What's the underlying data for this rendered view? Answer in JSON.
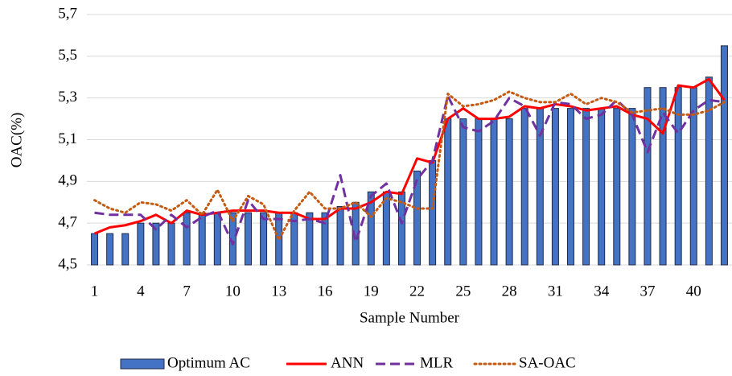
{
  "chart_data": {
    "type": "bar-line",
    "y_label": "OAC(%)",
    "x_label": "Sample Number",
    "categories": [
      "1",
      null,
      null,
      "4",
      null,
      null,
      "7",
      null,
      null,
      "10",
      null,
      null,
      "13",
      null,
      null,
      "16",
      null,
      null,
      "19",
      null,
      null,
      "22",
      null,
      null,
      "25",
      null,
      null,
      "28",
      null,
      null,
      "31",
      null,
      null,
      "34",
      null,
      null,
      "37",
      null,
      null,
      "40",
      null,
      null
    ],
    "ylim": [
      4.5,
      5.7
    ],
    "yticks": [
      {
        "value": 4.5,
        "label": "4,5"
      },
      {
        "value": 4.7,
        "label": "4,7"
      },
      {
        "value": 4.9,
        "label": "4,9"
      },
      {
        "value": 5.1,
        "label": "5,1"
      },
      {
        "value": 5.3,
        "label": "5,3"
      },
      {
        "value": 5.5,
        "label": "5,5"
      },
      {
        "value": 5.7,
        "label": "5,7"
      }
    ],
    "grid": true,
    "legend": "bottom",
    "series": [
      {
        "name": "Optimum AC",
        "kind": "bar",
        "color": "#4472c4",
        "values": [
          4.65,
          4.65,
          4.65,
          4.7,
          4.7,
          4.7,
          4.75,
          4.75,
          4.75,
          4.75,
          4.75,
          4.75,
          4.75,
          4.75,
          4.75,
          4.75,
          4.78,
          4.8,
          4.85,
          4.85,
          4.85,
          4.95,
          5.0,
          5.2,
          5.2,
          5.2,
          5.2,
          5.2,
          5.25,
          5.25,
          5.25,
          5.25,
          5.25,
          5.25,
          5.25,
          5.25,
          5.35,
          5.35,
          5.35,
          5.35,
          5.4,
          5.55
        ]
      },
      {
        "name": "ANN",
        "kind": "line",
        "dash": "solid",
        "color": "#ff0000",
        "values": [
          4.65,
          4.68,
          4.69,
          4.71,
          4.74,
          4.7,
          4.76,
          4.74,
          4.75,
          4.76,
          4.76,
          4.76,
          4.75,
          4.75,
          4.72,
          4.72,
          4.77,
          4.77,
          4.8,
          4.85,
          4.84,
          5.01,
          4.99,
          5.2,
          5.25,
          5.2,
          5.2,
          5.21,
          5.26,
          5.25,
          5.27,
          5.26,
          5.24,
          5.25,
          5.26,
          5.22,
          5.2,
          5.13,
          5.36,
          5.35,
          5.39,
          5.29
        ]
      },
      {
        "name": "MLR",
        "kind": "line",
        "dash": "dashed",
        "color": "#7030a0",
        "values": [
          4.75,
          4.74,
          4.74,
          4.74,
          4.67,
          4.74,
          4.68,
          4.73,
          4.76,
          4.6,
          4.81,
          4.72,
          4.72,
          4.71,
          4.72,
          4.7,
          4.93,
          4.61,
          4.83,
          4.89,
          4.7,
          4.91,
          5.0,
          5.31,
          5.16,
          5.14,
          5.19,
          5.3,
          5.26,
          5.12,
          5.28,
          5.27,
          5.2,
          5.22,
          5.29,
          5.22,
          5.04,
          5.23,
          5.13,
          5.24,
          5.29,
          5.28
        ]
      },
      {
        "name": "SA-OAC",
        "kind": "line",
        "dash": "dotted",
        "color": "#c55a11",
        "values": [
          4.81,
          4.77,
          4.75,
          4.8,
          4.79,
          4.76,
          4.81,
          4.74,
          4.86,
          4.71,
          4.83,
          4.79,
          4.62,
          4.76,
          4.85,
          4.77,
          4.77,
          4.8,
          4.73,
          4.82,
          4.8,
          4.77,
          4.77,
          5.32,
          5.26,
          5.27,
          5.29,
          5.33,
          5.3,
          5.28,
          5.28,
          5.32,
          5.27,
          5.3,
          5.28,
          5.23,
          5.24,
          5.25,
          5.22,
          5.22,
          5.24,
          5.28
        ]
      }
    ]
  }
}
